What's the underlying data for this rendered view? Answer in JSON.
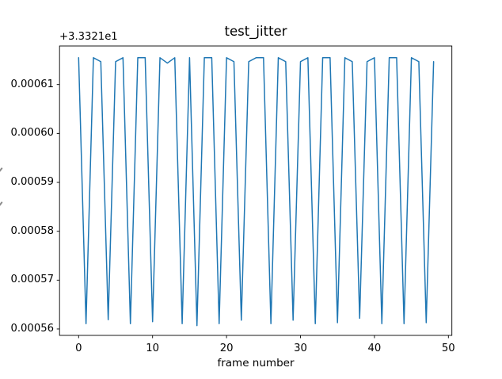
{
  "figure": {
    "background_color": "#ffffff",
    "text_color": "#000000",
    "axes_edge_color": "#000000"
  },
  "chart_data": {
    "type": "line",
    "title": "test_jitter",
    "xlabel": "frame number",
    "y_axis_offset_text": "+3.3321e1",
    "y_offset": 33.321,
    "line_color": "#1f77b4",
    "line_width": 1.5,
    "grid": false,
    "legend": "none",
    "xlim": [
      -2.58,
      50.47
    ],
    "ylim": [
      0.0005587,
      0.0006179
    ],
    "x_tick_values": [
      0,
      10,
      20,
      30,
      40,
      50
    ],
    "x_tick_labels": [
      "0",
      "10",
      "20",
      "30",
      "40",
      "50"
    ],
    "y_tick_values": [
      0.00056,
      0.00057,
      0.00058,
      0.00059,
      0.0006,
      0.00061
    ],
    "y_tick_labels": [
      "0.00056",
      "0.00057",
      "0.00058",
      "0.00059",
      "0.00060",
      "0.00061"
    ],
    "x": [
      0,
      1,
      2,
      3,
      4,
      5,
      6,
      7,
      8,
      9,
      10,
      11,
      12,
      13,
      14,
      15,
      16,
      17,
      18,
      19,
      20,
      21,
      22,
      23,
      24,
      25,
      26,
      27,
      28,
      29,
      30,
      31,
      32,
      33,
      34,
      35,
      36,
      37,
      38,
      39,
      40,
      41,
      42,
      43,
      44,
      45,
      46,
      47,
      48
    ],
    "values": [
      0.0006155,
      0.0005611,
      0.0006155,
      0.0006147,
      0.0005619,
      0.0006147,
      0.0006155,
      0.0005611,
      0.0006155,
      0.0006155,
      0.0005615,
      0.0006155,
      0.0006144,
      0.0006155,
      0.0005611,
      0.0006155,
      0.0005607,
      0.0006155,
      0.0006155,
      0.0005611,
      0.0006155,
      0.0006147,
      0.0005618,
      0.0006147,
      0.0006155,
      0.0006155,
      0.0005611,
      0.0006155,
      0.0006147,
      0.0005618,
      0.0006147,
      0.0006155,
      0.0005611,
      0.0006155,
      0.0006155,
      0.0005613,
      0.0006155,
      0.0006147,
      0.0005622,
      0.0006147,
      0.0006155,
      0.0005611,
      0.0006155,
      0.0006155,
      0.0005611,
      0.0006155,
      0.0006147,
      0.0005613,
      0.0006147
    ]
  }
}
